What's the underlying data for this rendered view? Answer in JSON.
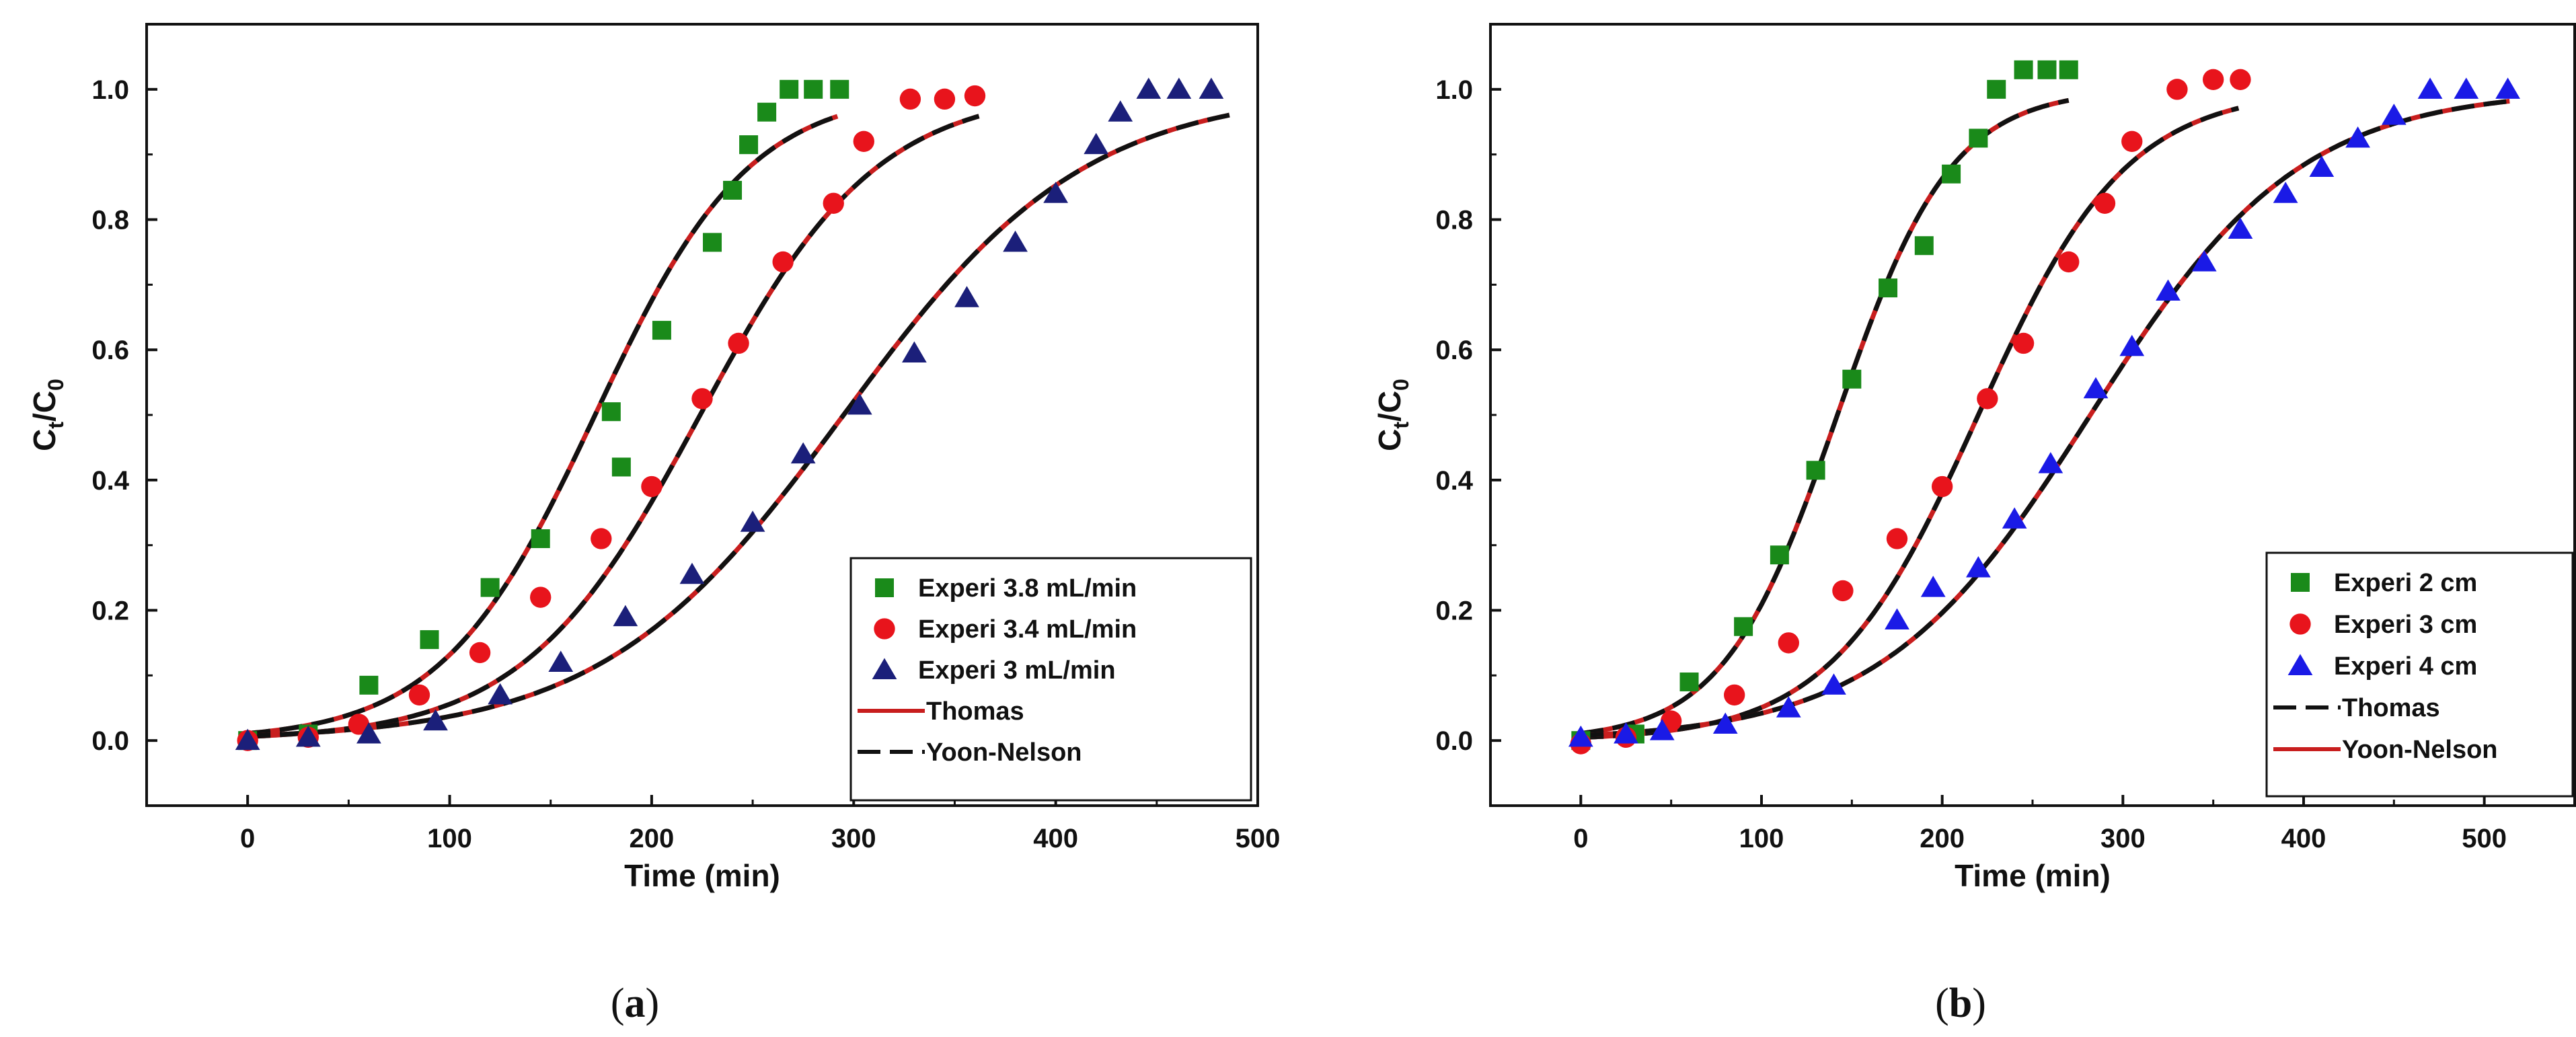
{
  "chart_data": [
    {
      "type": "scatter",
      "panel_label": "(a)",
      "xlabel": "Time (min)",
      "ylabel": "Ct/C0",
      "xlim": [
        -50,
        500
      ],
      "ylim": [
        -0.1,
        1.1
      ],
      "xticks": [
        0,
        100,
        200,
        300,
        400,
        500
      ],
      "yticks": [
        0.0,
        0.2,
        0.4,
        0.6,
        0.8,
        1.0
      ],
      "legend_position": "bottom-right",
      "series": [
        {
          "name": "Experi 3.8 mL/min",
          "marker": "square",
          "color": "#1a8a1a",
          "x": [
            0,
            30,
            60,
            90,
            120,
            145,
            180,
            185,
            205,
            230,
            240,
            248,
            257,
            268,
            280,
            293
          ],
          "y": [
            0.0,
            0.01,
            0.085,
            0.155,
            0.235,
            0.31,
            0.505,
            0.42,
            0.63,
            0.765,
            0.845,
            0.915,
            0.965,
            1.0,
            1.0,
            1.0
          ]
        },
        {
          "name": "Experi 3.4 mL/min",
          "marker": "circle",
          "color": "#e8141c",
          "x": [
            0,
            30,
            55,
            85,
            115,
            145,
            175,
            200,
            225,
            243,
            265,
            290,
            305,
            328,
            345,
            360
          ],
          "y": [
            0.0,
            0.005,
            0.025,
            0.07,
            0.135,
            0.22,
            0.31,
            0.39,
            0.525,
            0.61,
            0.735,
            0.825,
            0.92,
            0.985,
            0.985,
            0.99
          ]
        },
        {
          "name": "Experi 3 mL/min",
          "marker": "triangle",
          "color": "#1b1f7a",
          "x": [
            0,
            30,
            60,
            93,
            125,
            155,
            187,
            220,
            250,
            275,
            303,
            330,
            356,
            380,
            400,
            420,
            432,
            446,
            461,
            477
          ],
          "y": [
            0.0,
            0.005,
            0.01,
            0.03,
            0.07,
            0.12,
            0.19,
            0.255,
            0.335,
            0.44,
            0.515,
            0.595,
            0.68,
            0.765,
            0.84,
            0.915,
            0.965,
            1.0,
            1.0,
            1.0
          ]
        }
      ],
      "models": [
        {
          "name": "Thomas",
          "color": "#c81e1e",
          "dash": "solid"
        },
        {
          "name": "Yoon-Nelson",
          "color": "#111111",
          "dash": "dashed"
        }
      ],
      "model_curves": [
        {
          "k": 0.0262,
          "tau": 172,
          "x_end": 293
        },
        {
          "k": 0.0228,
          "tau": 224,
          "x_end": 362
        },
        {
          "k": 0.0167,
          "tau": 295,
          "x_end": 486
        }
      ]
    },
    {
      "type": "scatter",
      "panel_label": "(b)",
      "xlabel": "Time (min)",
      "ylabel": "Ct/C0",
      "xlim": [
        -50,
        550
      ],
      "ylim": [
        -0.1,
        1.1
      ],
      "xticks": [
        0,
        100,
        200,
        300,
        400,
        500
      ],
      "yticks": [
        0.0,
        0.2,
        0.4,
        0.6,
        0.8,
        1.0
      ],
      "legend_position": "bottom-right",
      "series": [
        {
          "name": "Experi 2 cm",
          "marker": "square",
          "color": "#1a8a1a",
          "x": [
            0,
            30,
            60,
            90,
            110,
            130,
            150,
            170,
            190,
            205,
            220,
            230,
            245,
            258,
            270
          ],
          "y": [
            0.0,
            0.01,
            0.09,
            0.175,
            0.285,
            0.415,
            0.555,
            0.695,
            0.76,
            0.87,
            0.925,
            1.0,
            1.03,
            1.03,
            1.03
          ]
        },
        {
          "name": "Experi 3 cm",
          "marker": "circle",
          "color": "#e8141c",
          "x": [
            0,
            25,
            50,
            85,
            115,
            145,
            175,
            200,
            225,
            245,
            270,
            290,
            305,
            330,
            350,
            365
          ],
          "y": [
            -0.005,
            0.005,
            0.03,
            0.07,
            0.15,
            0.23,
            0.31,
            0.39,
            0.525,
            0.61,
            0.735,
            0.825,
            0.92,
            1.0,
            1.015,
            1.015
          ]
        },
        {
          "name": "Experi 4 cm",
          "marker": "triangle",
          "color": "#1a1ae6",
          "x": [
            0,
            25,
            45,
            80,
            115,
            140,
            175,
            195,
            220,
            240,
            260,
            285,
            305,
            325,
            345,
            365,
            390,
            410,
            430,
            450,
            470,
            490,
            513
          ],
          "y": [
            0.005,
            0.01,
            0.015,
            0.025,
            0.05,
            0.085,
            0.185,
            0.235,
            0.265,
            0.34,
            0.425,
            0.54,
            0.605,
            0.69,
            0.735,
            0.785,
            0.84,
            0.88,
            0.925,
            0.96,
            1.0,
            1.0,
            1.0
          ]
        }
      ],
      "models": [
        {
          "name": "Thomas",
          "color": "#111111",
          "dash": "dashed"
        },
        {
          "name": "Yoon-Nelson",
          "color": "#c81e1e",
          "dash": "solid"
        }
      ],
      "model_curves": [
        {
          "k": 0.0317,
          "tau": 142,
          "x_end": 270
        },
        {
          "k": 0.0244,
          "tau": 220,
          "x_end": 365
        },
        {
          "k": 0.0172,
          "tau": 282,
          "x_end": 515
        }
      ]
    }
  ]
}
